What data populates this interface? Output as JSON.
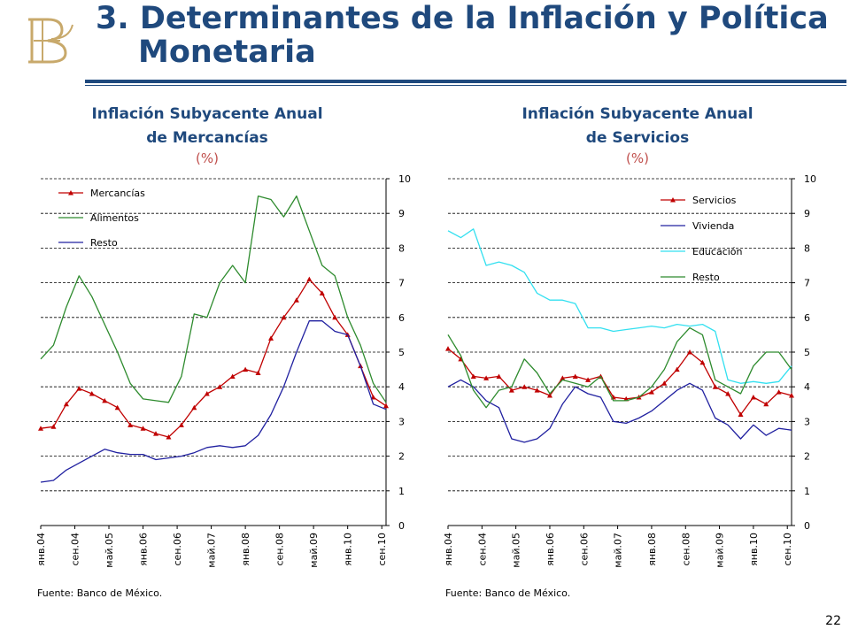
{
  "slide": {
    "title_line1": "3. Determinantes de la Inflación y Política",
    "title_line2": "Monetaria",
    "page_number": "22",
    "colors": {
      "title": "#1f497d",
      "unit": "#c0504d",
      "logo": "#c8a96b"
    }
  },
  "chart_data": [
    {
      "type": "line",
      "title_line1": "Inflación Subyacente Anual",
      "title_line2": "de Mercancías",
      "unit": "(%)",
      "source": "Fuente: Banco de México.",
      "ylim": [
        0,
        10
      ],
      "yticks": [
        "0",
        "1",
        "2",
        "3",
        "4",
        "5",
        "6",
        "7",
        "8",
        "9",
        "10"
      ],
      "xlim": [
        2004.0,
        2010.75
      ],
      "x_tick_labels": [
        "янв.04",
        "сен.04",
        "май.05",
        "янв.06",
        "сен.06",
        "май.07",
        "янв.08",
        "сен.08",
        "май.09",
        "янв.10",
        "сен.10"
      ],
      "x_tick_values": [
        2004.0,
        2004.667,
        2005.333,
        2006.0,
        2006.667,
        2007.333,
        2008.0,
        2008.667,
        2009.333,
        2010.0,
        2010.667
      ],
      "grid": true,
      "legend_position": "top-left",
      "series": [
        {
          "name": "Mercancías",
          "color": "#c00000",
          "marker": "triangle",
          "points": [
            [
              2004.0,
              2.8
            ],
            [
              2004.25,
              2.85
            ],
            [
              2004.5,
              3.5
            ],
            [
              2004.75,
              3.95
            ],
            [
              2005.0,
              3.8
            ],
            [
              2005.25,
              3.6
            ],
            [
              2005.5,
              3.4
            ],
            [
              2005.75,
              2.9
            ],
            [
              2006.0,
              2.8
            ],
            [
              2006.25,
              2.65
            ],
            [
              2006.5,
              2.55
            ],
            [
              2006.75,
              2.9
            ],
            [
              2007.0,
              3.4
            ],
            [
              2007.25,
              3.8
            ],
            [
              2007.5,
              4.0
            ],
            [
              2007.75,
              4.3
            ],
            [
              2008.0,
              4.5
            ],
            [
              2008.25,
              4.4
            ],
            [
              2008.5,
              5.4
            ],
            [
              2008.75,
              6.0
            ],
            [
              2009.0,
              6.5
            ],
            [
              2009.25,
              7.1
            ],
            [
              2009.5,
              6.7
            ],
            [
              2009.75,
              6.0
            ],
            [
              2010.0,
              5.5
            ],
            [
              2010.25,
              4.6
            ],
            [
              2010.5,
              3.7
            ],
            [
              2010.75,
              3.45
            ]
          ]
        },
        {
          "name": "Alimentos",
          "color": "#2e8b2e",
          "marker": "none",
          "points": [
            [
              2004.0,
              4.8
            ],
            [
              2004.25,
              5.2
            ],
            [
              2004.5,
              6.3
            ],
            [
              2004.75,
              7.2
            ],
            [
              2005.0,
              6.6
            ],
            [
              2005.25,
              5.8
            ],
            [
              2005.5,
              5.0
            ],
            [
              2005.75,
              4.1
            ],
            [
              2006.0,
              3.65
            ],
            [
              2006.25,
              3.6
            ],
            [
              2006.5,
              3.55
            ],
            [
              2006.75,
              4.3
            ],
            [
              2007.0,
              6.1
            ],
            [
              2007.25,
              6.0
            ],
            [
              2007.5,
              7.0
            ],
            [
              2007.75,
              7.5
            ],
            [
              2008.0,
              7.0
            ],
            [
              2008.25,
              9.5
            ],
            [
              2008.5,
              9.4
            ],
            [
              2008.75,
              8.9
            ],
            [
              2009.0,
              9.5
            ],
            [
              2009.25,
              8.5
            ],
            [
              2009.5,
              7.5
            ],
            [
              2009.75,
              7.2
            ],
            [
              2010.0,
              6.0
            ],
            [
              2010.25,
              5.2
            ],
            [
              2010.5,
              4.1
            ],
            [
              2010.75,
              3.55
            ]
          ]
        },
        {
          "name": "Resto",
          "color": "#2020a0",
          "marker": "none",
          "points": [
            [
              2004.0,
              1.25
            ],
            [
              2004.25,
              1.3
            ],
            [
              2004.5,
              1.6
            ],
            [
              2004.75,
              1.8
            ],
            [
              2005.0,
              2.0
            ],
            [
              2005.25,
              2.2
            ],
            [
              2005.5,
              2.1
            ],
            [
              2005.75,
              2.05
            ],
            [
              2006.0,
              2.05
            ],
            [
              2006.25,
              1.9
            ],
            [
              2006.5,
              1.95
            ],
            [
              2006.75,
              2.0
            ],
            [
              2007.0,
              2.1
            ],
            [
              2007.25,
              2.25
            ],
            [
              2007.5,
              2.3
            ],
            [
              2007.75,
              2.25
            ],
            [
              2008.0,
              2.3
            ],
            [
              2008.25,
              2.6
            ],
            [
              2008.5,
              3.2
            ],
            [
              2008.75,
              4.0
            ],
            [
              2009.0,
              5.0
            ],
            [
              2009.25,
              5.9
            ],
            [
              2009.5,
              5.9
            ],
            [
              2009.75,
              5.6
            ],
            [
              2010.0,
              5.5
            ],
            [
              2010.25,
              4.6
            ],
            [
              2010.5,
              3.5
            ],
            [
              2010.75,
              3.35
            ]
          ]
        }
      ]
    },
    {
      "type": "line",
      "title_line1": "Inflación Subyacente Anual",
      "title_line2": "de Servicios",
      "unit": "(%)",
      "source": "Fuente: Banco de México.",
      "ylim": [
        0,
        10
      ],
      "yticks": [
        "0",
        "1",
        "2",
        "3",
        "4",
        "5",
        "6",
        "7",
        "8",
        "9",
        "10"
      ],
      "xlim": [
        2004.0,
        2010.75
      ],
      "x_tick_labels": [
        "янв.04",
        "сен.04",
        "май.05",
        "янв.06",
        "сен.06",
        "май.07",
        "янв.08",
        "сен.08",
        "май.09",
        "янв.10",
        "сен.10"
      ],
      "x_tick_values": [
        2004.0,
        2004.667,
        2005.333,
        2006.0,
        2006.667,
        2007.333,
        2008.0,
        2008.667,
        2009.333,
        2010.0,
        2010.667
      ],
      "grid": true,
      "legend_position": "top-right",
      "series": [
        {
          "name": "Servicios",
          "color": "#c00000",
          "marker": "triangle",
          "points": [
            [
              2004.0,
              5.1
            ],
            [
              2004.25,
              4.8
            ],
            [
              2004.5,
              4.3
            ],
            [
              2004.75,
              4.25
            ],
            [
              2005.0,
              4.3
            ],
            [
              2005.25,
              3.9
            ],
            [
              2005.5,
              4.0
            ],
            [
              2005.75,
              3.9
            ],
            [
              2006.0,
              3.75
            ],
            [
              2006.25,
              4.25
            ],
            [
              2006.5,
              4.3
            ],
            [
              2006.75,
              4.2
            ],
            [
              2007.0,
              4.3
            ],
            [
              2007.25,
              3.7
            ],
            [
              2007.5,
              3.65
            ],
            [
              2007.75,
              3.7
            ],
            [
              2008.0,
              3.85
            ],
            [
              2008.25,
              4.1
            ],
            [
              2008.5,
              4.5
            ],
            [
              2008.75,
              5.0
            ],
            [
              2009.0,
              4.7
            ],
            [
              2009.25,
              4.0
            ],
            [
              2009.5,
              3.8
            ],
            [
              2009.75,
              3.2
            ],
            [
              2010.0,
              3.7
            ],
            [
              2010.25,
              3.5
            ],
            [
              2010.5,
              3.85
            ],
            [
              2010.75,
              3.75
            ]
          ]
        },
        {
          "name": "Vivienda",
          "color": "#2020a0",
          "marker": "none",
          "points": [
            [
              2004.0,
              4.0
            ],
            [
              2004.25,
              4.2
            ],
            [
              2004.5,
              4.0
            ],
            [
              2004.75,
              3.6
            ],
            [
              2005.0,
              3.4
            ],
            [
              2005.25,
              2.5
            ],
            [
              2005.5,
              2.4
            ],
            [
              2005.75,
              2.5
            ],
            [
              2006.0,
              2.8
            ],
            [
              2006.25,
              3.5
            ],
            [
              2006.5,
              4.0
            ],
            [
              2006.75,
              3.8
            ],
            [
              2007.0,
              3.7
            ],
            [
              2007.25,
              3.0
            ],
            [
              2007.5,
              2.95
            ],
            [
              2007.75,
              3.1
            ],
            [
              2008.0,
              3.3
            ],
            [
              2008.25,
              3.6
            ],
            [
              2008.5,
              3.9
            ],
            [
              2008.75,
              4.1
            ],
            [
              2009.0,
              3.9
            ],
            [
              2009.25,
              3.1
            ],
            [
              2009.5,
              2.9
            ],
            [
              2009.75,
              2.5
            ],
            [
              2010.0,
              2.9
            ],
            [
              2010.25,
              2.6
            ],
            [
              2010.5,
              2.8
            ],
            [
              2010.75,
              2.75
            ]
          ]
        },
        {
          "name": "Educación",
          "color": "#33e0f0",
          "marker": "none",
          "points": [
            [
              2004.0,
              8.5
            ],
            [
              2004.25,
              8.3
            ],
            [
              2004.5,
              8.55
            ],
            [
              2004.75,
              7.5
            ],
            [
              2005.0,
              7.6
            ],
            [
              2005.25,
              7.5
            ],
            [
              2005.5,
              7.3
            ],
            [
              2005.75,
              6.7
            ],
            [
              2006.0,
              6.5
            ],
            [
              2006.25,
              6.5
            ],
            [
              2006.5,
              6.4
            ],
            [
              2006.75,
              5.7
            ],
            [
              2007.0,
              5.7
            ],
            [
              2007.25,
              5.6
            ],
            [
              2007.5,
              5.65
            ],
            [
              2007.75,
              5.7
            ],
            [
              2008.0,
              5.75
            ],
            [
              2008.25,
              5.7
            ],
            [
              2008.5,
              5.8
            ],
            [
              2008.75,
              5.75
            ],
            [
              2009.0,
              5.8
            ],
            [
              2009.25,
              5.6
            ],
            [
              2009.5,
              4.2
            ],
            [
              2009.75,
              4.1
            ],
            [
              2010.0,
              4.15
            ],
            [
              2010.25,
              4.1
            ],
            [
              2010.5,
              4.15
            ],
            [
              2010.75,
              4.6
            ]
          ]
        },
        {
          "name": "Resto",
          "color": "#2e8b2e",
          "marker": "none",
          "points": [
            [
              2004.0,
              5.5
            ],
            [
              2004.25,
              4.9
            ],
            [
              2004.5,
              3.9
            ],
            [
              2004.75,
              3.4
            ],
            [
              2005.0,
              3.9
            ],
            [
              2005.25,
              4.0
            ],
            [
              2005.5,
              4.8
            ],
            [
              2005.75,
              4.4
            ],
            [
              2006.0,
              3.8
            ],
            [
              2006.25,
              4.2
            ],
            [
              2006.5,
              4.1
            ],
            [
              2006.75,
              4.0
            ],
            [
              2007.0,
              4.3
            ],
            [
              2007.25,
              3.6
            ],
            [
              2007.5,
              3.6
            ],
            [
              2007.75,
              3.7
            ],
            [
              2008.0,
              4.0
            ],
            [
              2008.25,
              4.5
            ],
            [
              2008.5,
              5.3
            ],
            [
              2008.75,
              5.7
            ],
            [
              2009.0,
              5.5
            ],
            [
              2009.25,
              4.2
            ],
            [
              2009.5,
              4.0
            ],
            [
              2009.75,
              3.8
            ],
            [
              2010.0,
              4.6
            ],
            [
              2010.25,
              5.0
            ],
            [
              2010.5,
              5.0
            ],
            [
              2010.75,
              4.5
            ]
          ]
        }
      ]
    }
  ]
}
